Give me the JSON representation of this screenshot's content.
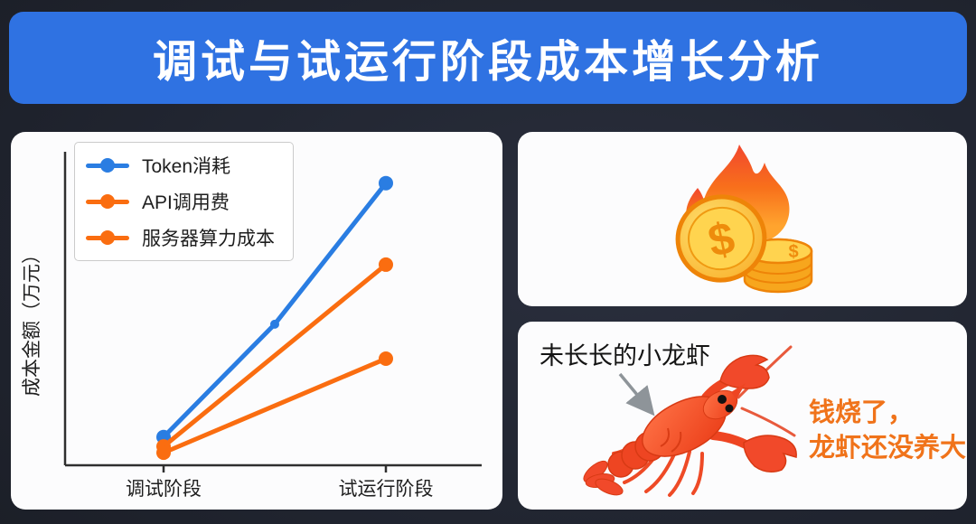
{
  "header": {
    "title": "调试与试运行阶段成本增长分析",
    "bg_color": "#2f72e2",
    "text_color": "#ffffff"
  },
  "chart_data": {
    "type": "line",
    "title": "",
    "categories": [
      "调试阶段",
      "试运行阶段"
    ],
    "xlabel": "",
    "ylabel": "成本金额（万元）",
    "ylim": [
      0,
      100
    ],
    "grid": false,
    "legend_position": "upper left",
    "series": [
      {
        "name": "Token消耗",
        "color": "#2a7de2",
        "x": [
          0,
          0.5,
          1
        ],
        "values": [
          9,
          45,
          90
        ]
      },
      {
        "name": "API调用费",
        "color": "#fa6d10",
        "x": [
          0,
          1
        ],
        "values": [
          6,
          64
        ]
      },
      {
        "name": "服务器算力成本",
        "color": "#fa6d10",
        "x": [
          0,
          1
        ],
        "values": [
          4,
          34
        ]
      }
    ]
  },
  "burn_panel": {
    "illustration": "flame-coins-icon",
    "coin_symbol": "$"
  },
  "lobster_panel": {
    "caption": "未长长的小龙虾",
    "arrow": "arrow-down-right-icon",
    "illustration": "crayfish-icon",
    "note_line1": "钱烧了，",
    "note_line2": "龙虾还没养大",
    "note_color": "#f0731a"
  }
}
